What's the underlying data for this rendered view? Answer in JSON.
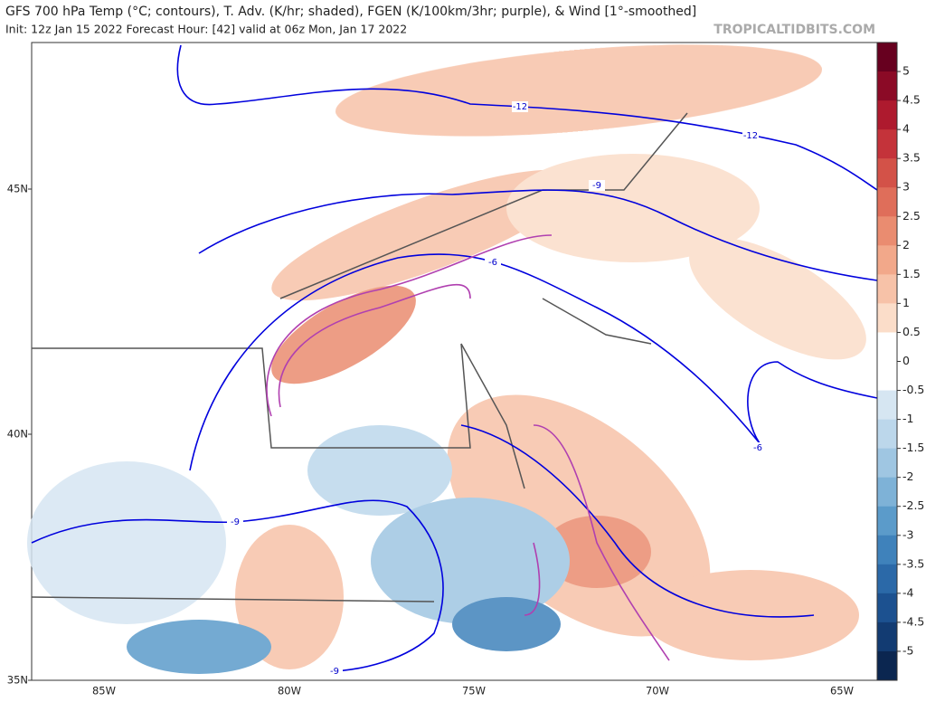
{
  "header": {
    "title": "GFS 700 hPa Temp (°C; contours), T. Adv. (K/hr; shaded), FGEN (K/100km/3hr; purple), & Wind [1°-smoothed]",
    "subtitle": "Init: 12z Jan 15 2022   Forecast Hour: [42]   valid at 06z Mon, Jan 17 2022",
    "watermark": "TROPICALTIDBITS.COM"
  },
  "map": {
    "lat_labels": [
      "45N",
      "40N",
      "35N"
    ],
    "lon_labels": [
      "85W",
      "80W",
      "75W",
      "70W",
      "65W"
    ],
    "contour_labels": [
      "-12",
      "-12",
      "-9",
      "-9",
      "-9",
      "-6",
      "-6"
    ]
  },
  "colorbar": {
    "labels": [
      "5",
      "4.5",
      "4",
      "3.5",
      "3",
      "2.5",
      "2",
      "1.5",
      "1",
      "0.5",
      "0",
      "-0.5",
      "-1",
      "-1.5",
      "-2",
      "-2.5",
      "-3",
      "-3.5",
      "-4",
      "-4.5",
      "-5"
    ],
    "colors": [
      "#67001f",
      "#8b0a26",
      "#ae1a2e",
      "#c4333a",
      "#d35248",
      "#df6e5a",
      "#ea8c70",
      "#f2a88a",
      "#f7c2a8",
      "#fbddc9",
      "#ffffff",
      "#ffffff",
      "#d6e6f2",
      "#bcd7eb",
      "#9fc6e2",
      "#7eb2d7",
      "#5b9bca",
      "#3f82bb",
      "#2b69a8",
      "#1c5190",
      "#123b72",
      "#0b2650"
    ]
  }
}
